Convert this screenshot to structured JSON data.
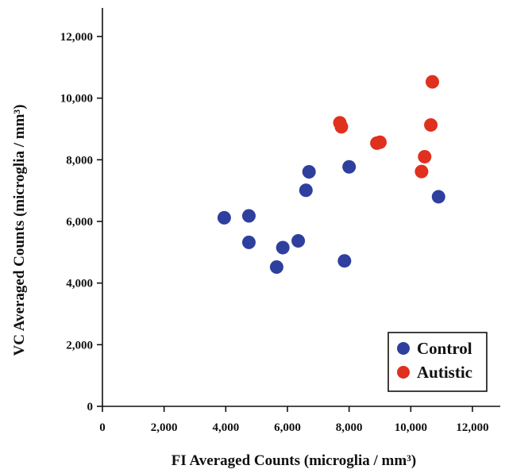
{
  "chart_data": {
    "type": "scatter",
    "xlabel": "FI Averaged Counts (microglia / mm³)",
    "ylabel": "VC Averaged Counts (microglia / mm³)",
    "xlim": [
      0,
      13000
    ],
    "ylim": [
      0,
      13000
    ],
    "x_ticks": [
      0,
      2000,
      4000,
      6000,
      8000,
      10000,
      12000
    ],
    "y_ticks": [
      0,
      2000,
      4000,
      6000,
      8000,
      10000,
      12000
    ],
    "x_tick_labels": [
      "0",
      "2,000",
      "4,000",
      "6,000",
      "8,000",
      "10,000",
      "12,000"
    ],
    "y_tick_labels": [
      "0",
      "2,000",
      "4,000",
      "6,000",
      "8,000",
      "10,000",
      "12,000"
    ],
    "legend_position": "bottom-right",
    "grid": false,
    "series": [
      {
        "name": "Control",
        "color": "#2e3f9e",
        "points": [
          {
            "x": 3950,
            "y": 6120
          },
          {
            "x": 4750,
            "y": 6180
          },
          {
            "x": 4750,
            "y": 5320
          },
          {
            "x": 5650,
            "y": 4520
          },
          {
            "x": 5850,
            "y": 5150
          },
          {
            "x": 6350,
            "y": 5370
          },
          {
            "x": 6600,
            "y": 7010
          },
          {
            "x": 6700,
            "y": 7610
          },
          {
            "x": 7850,
            "y": 4720
          },
          {
            "x": 8000,
            "y": 7770
          },
          {
            "x": 10900,
            "y": 6800
          }
        ]
      },
      {
        "name": "Autistic",
        "color": "#e0301e",
        "points": [
          {
            "x": 7700,
            "y": 9200
          },
          {
            "x": 7750,
            "y": 9070
          },
          {
            "x": 8900,
            "y": 8540
          },
          {
            "x": 9000,
            "y": 8570
          },
          {
            "x": 10350,
            "y": 7620
          },
          {
            "x": 10450,
            "y": 8100
          },
          {
            "x": 10650,
            "y": 9130
          },
          {
            "x": 10700,
            "y": 10530
          }
        ]
      }
    ]
  }
}
